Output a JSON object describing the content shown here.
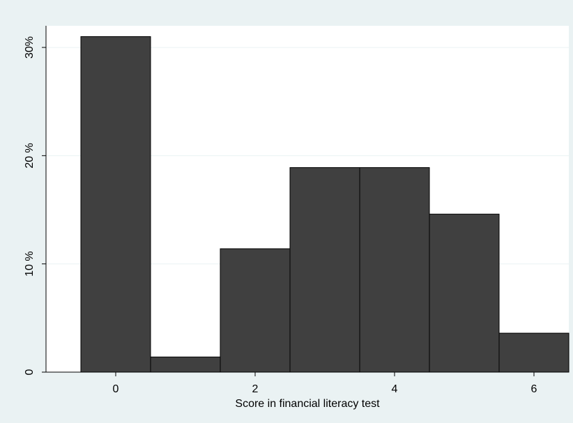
{
  "chart_data": {
    "type": "bar",
    "title": "",
    "xlabel": "Score in financial literacy test",
    "ylabel": "",
    "x": [
      0,
      1,
      2,
      3,
      4,
      5,
      6
    ],
    "values": [
      31.0,
      1.4,
      11.4,
      18.9,
      18.9,
      14.6,
      3.6
    ],
    "xlim": [
      -1,
      6.5
    ],
    "ylim": [
      0,
      32
    ],
    "x_ticks": [
      {
        "value": 0,
        "label": "0"
      },
      {
        "value": 2,
        "label": "2"
      },
      {
        "value": 4,
        "label": "4"
      },
      {
        "value": 6,
        "label": "6"
      }
    ],
    "y_ticks": [
      {
        "value": 0,
        "label": "0"
      },
      {
        "value": 10,
        "label": "10 %"
      },
      {
        "value": 20,
        "label": "20 %"
      },
      {
        "value": 30,
        "label": "30%"
      }
    ],
    "grid": true,
    "bar_color": "#404040",
    "bar_edge_color": "#000000",
    "plot_background": "#ffffff",
    "outer_background": "#eaf2f3",
    "grid_color": "#eaf2f3"
  }
}
